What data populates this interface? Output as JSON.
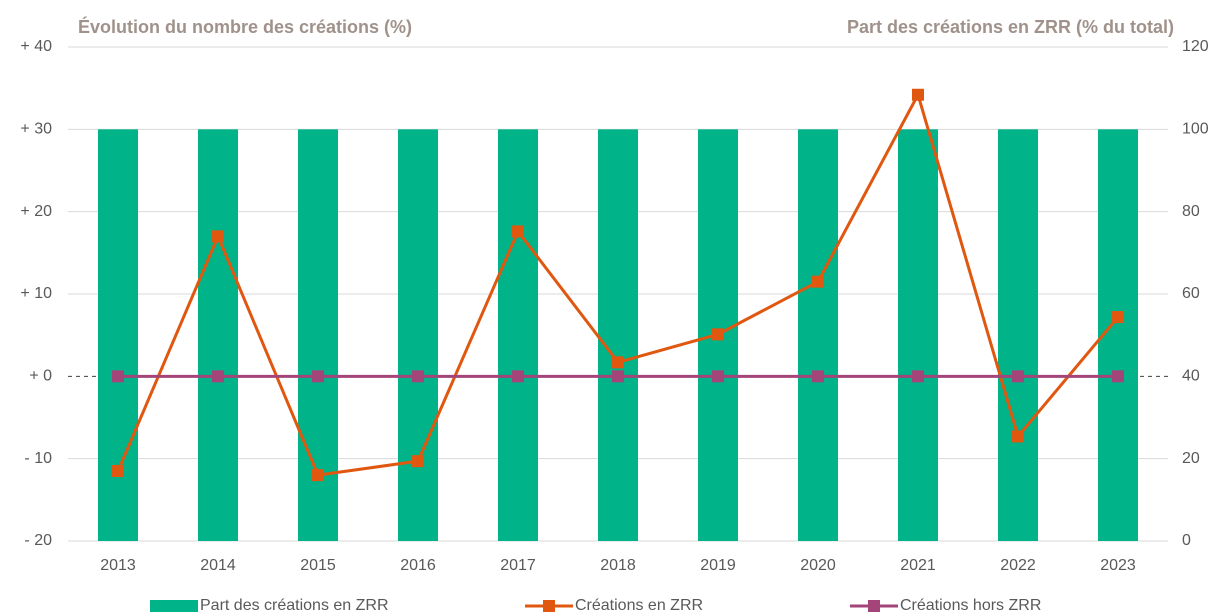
{
  "chart_data": {
    "type": "combo",
    "y_title": "Évolution du nombre des créations (%)",
    "y2_title": "Part des créations en ZRR (% du total)",
    "categories": [
      "2013",
      "2014",
      "2015",
      "2016",
      "2017",
      "2018",
      "2019",
      "2020",
      "2021",
      "2022",
      "2023"
    ],
    "series": [
      {
        "name": "Part des créations en ZRR",
        "type": "bar",
        "axis": "y2",
        "color": "#00b388",
        "values": [
          100,
          100,
          100,
          100,
          100,
          100,
          100,
          100,
          100,
          100,
          100
        ]
      },
      {
        "name": "Créations en ZRR",
        "type": "line",
        "color": "#e0570f",
        "values": [
          -11.5,
          17,
          -12,
          -10.3,
          17.6,
          1.7,
          5.1,
          11.5,
          34.2,
          -7.3,
          7.2
        ]
      },
      {
        "name": "Créations hors ZRR",
        "type": "line",
        "color": "#a4457a",
        "values": [
          0,
          0,
          0,
          0,
          0,
          0,
          0,
          0,
          0,
          0,
          0
        ]
      }
    ],
    "ylim": [
      -20,
      40
    ],
    "yticks": [
      {
        "value": -20,
        "label": "- 20"
      },
      {
        "value": -10,
        "label": "- 10"
      },
      {
        "value": 0,
        "label": "+ 0"
      },
      {
        "value": 10,
        "label": "+ 10"
      },
      {
        "value": 20,
        "label": "+ 20"
      },
      {
        "value": 30,
        "label": "+ 30"
      },
      {
        "value": 40,
        "label": "+ 40"
      }
    ],
    "y2lim": [
      0,
      120
    ],
    "y2ticks": [
      0,
      20,
      40,
      60,
      80,
      100,
      120
    ],
    "grid": true
  }
}
